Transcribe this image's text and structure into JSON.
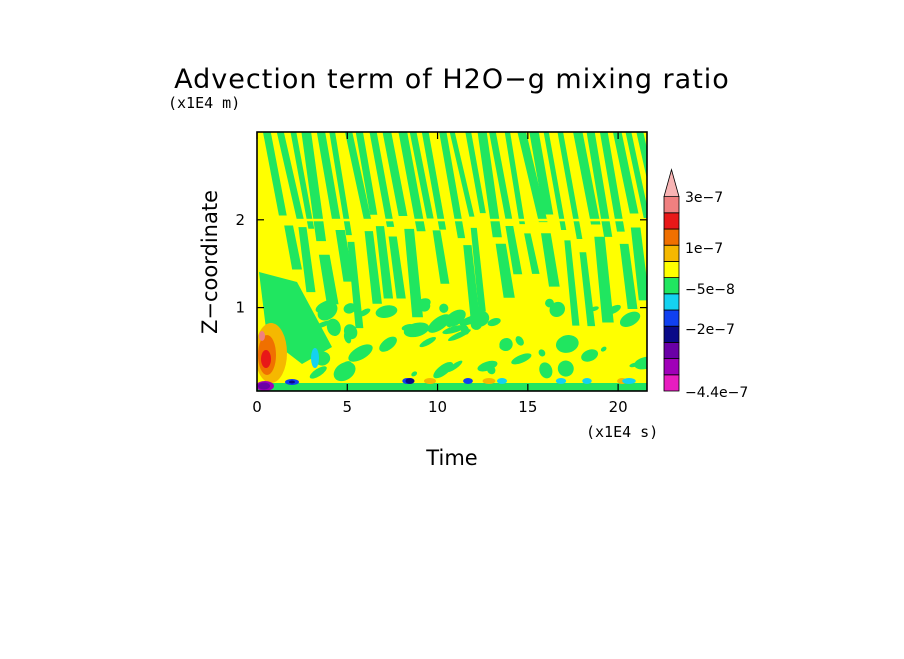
{
  "chart_data": {
    "type": "heatmap",
    "title": "Advection term of H2O−g mixing ratio",
    "xlabel": "Time",
    "ylabel": "Z−coordinate",
    "x_unit_label": "(x1E4 s)",
    "y_unit_label": "(x1E4 m)",
    "xlim": [
      0,
      21.6
    ],
    "ylim": [
      0.05,
      3.0
    ],
    "x_ticks": [
      "0",
      "5",
      "10",
      "15",
      "20"
    ],
    "x_tick_values": [
      0,
      5,
      10,
      15,
      20
    ],
    "y_ticks": [
      "1",
      "2"
    ],
    "y_tick_values": [
      1,
      2
    ],
    "grid": false,
    "legend": "right colorbar",
    "colorbar": {
      "labels": [
        "3e−7",
        "1e−7",
        "−5e−8",
        "−2e−7",
        "−4.4e−7"
      ],
      "label_values": [
        3e-07,
        1e-07,
        -5e-08,
        -2e-07,
        -4.4e-07
      ],
      "colors_bottom_to_top": [
        "#e81cc0",
        "#a000b8",
        "#6a00a6",
        "#0a0a88",
        "#1040f0",
        "#14d2f0",
        "#20e660",
        "#ffff00",
        "#f5b800",
        "#f07000",
        "#e81818",
        "#f08080"
      ],
      "extend_top_color": "#f8b4b4"
    },
    "description_of_field": {
      "background_value_color": "#ffff00",
      "upper_layer_pattern": "diagonal green streaks (slightly negative) alternating with yellow",
      "near_surface_features": "orange/red positive values near t=0-1, purple/blue negative values along bottom edge"
    }
  }
}
